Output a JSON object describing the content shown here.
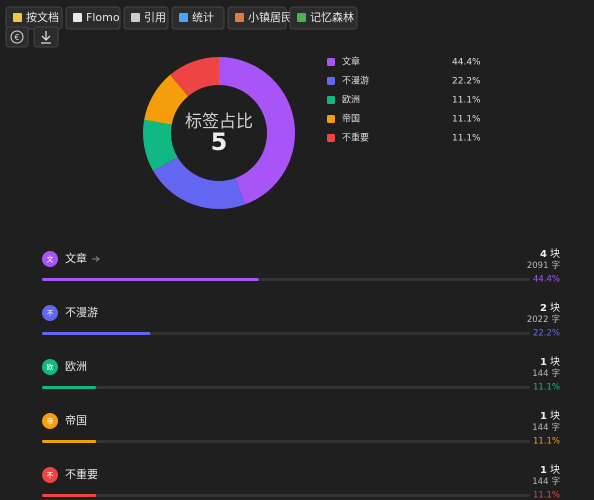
{
  "toolbar": {
    "buttons": [
      "按文档",
      "Flomo",
      "引用",
      "统计",
      "小镇居民",
      "记忆森林"
    ],
    "currency_icon": "€"
  },
  "chart_data": {
    "type": "pie",
    "title": "标签占比",
    "center_value": 5,
    "categories": [
      "文章",
      "不漫游",
      "欧洲",
      "帝国",
      "不重要"
    ],
    "values": [
      44.4,
      22.2,
      11.1,
      11.1,
      11.1
    ],
    "value_labels": [
      "44.4%",
      "22.2%",
      "11.1%",
      "11.1%",
      "11.1%"
    ],
    "colors": [
      "#a855f7",
      "#6366f1",
      "#10b981",
      "#f59e0b",
      "#ef4444"
    ]
  },
  "list": {
    "unit_blocks": "块",
    "unit_chars": "字",
    "items": [
      {
        "badge": "文",
        "count": 4,
        "chars": 2091
      },
      {
        "badge": "不",
        "count": 2,
        "chars": 2022
      },
      {
        "badge": "欧",
        "count": 1,
        "chars": 144
      },
      {
        "badge": "帝",
        "count": 1,
        "chars": 144
      },
      {
        "badge": "不",
        "count": 1,
        "chars": 144
      }
    ]
  }
}
